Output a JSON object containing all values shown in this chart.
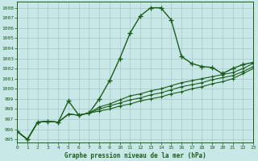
{
  "title": "Graphe pression niveau de la mer (hPa)",
  "bg_color": "#c8e8e8",
  "grid_color": "#a8c8c8",
  "line_color": "#1a5c1a",
  "xlim": [
    0,
    23
  ],
  "ylim": [
    994.7,
    1008.6
  ],
  "yticks": [
    995,
    996,
    997,
    998,
    999,
    1000,
    1001,
    1002,
    1003,
    1004,
    1005,
    1006,
    1007,
    1008
  ],
  "xticks": [
    0,
    1,
    2,
    3,
    4,
    5,
    6,
    7,
    8,
    9,
    10,
    11,
    12,
    13,
    14,
    15,
    16,
    17,
    18,
    19,
    20,
    21,
    22,
    23
  ],
  "line1": [
    995.8,
    995.0,
    996.7,
    996.8,
    996.7,
    998.8,
    997.4,
    997.6,
    999.0,
    1000.8,
    1003.0,
    1005.5,
    1007.2,
    1008.0,
    1008.0,
    1006.8,
    1003.2,
    1002.5,
    1002.2,
    1002.1,
    1001.5,
    1002.0,
    1002.4,
    1002.6
  ],
  "line2": [
    995.8,
    995.0,
    996.7,
    996.8,
    996.7,
    997.5,
    997.4,
    997.6,
    997.8,
    998.0,
    998.3,
    998.5,
    998.8,
    999.0,
    999.2,
    999.5,
    999.7,
    1000.0,
    1000.2,
    1000.5,
    1000.7,
    1001.0,
    1001.5,
    1002.0
  ],
  "line3": [
    995.8,
    995.0,
    996.7,
    996.8,
    996.7,
    997.5,
    997.4,
    997.6,
    998.0,
    998.3,
    998.6,
    998.9,
    999.1,
    999.4,
    999.6,
    999.9,
    1000.2,
    1000.4,
    1000.6,
    1000.9,
    1001.1,
    1001.3,
    1001.7,
    1002.2
  ],
  "line4": [
    995.8,
    995.0,
    996.7,
    996.8,
    996.7,
    997.5,
    997.4,
    997.6,
    998.2,
    998.5,
    998.9,
    999.3,
    999.5,
    999.8,
    1000.0,
    1000.3,
    1000.6,
    1000.8,
    1001.0,
    1001.2,
    1001.4,
    1001.6,
    1002.0,
    1002.5
  ]
}
